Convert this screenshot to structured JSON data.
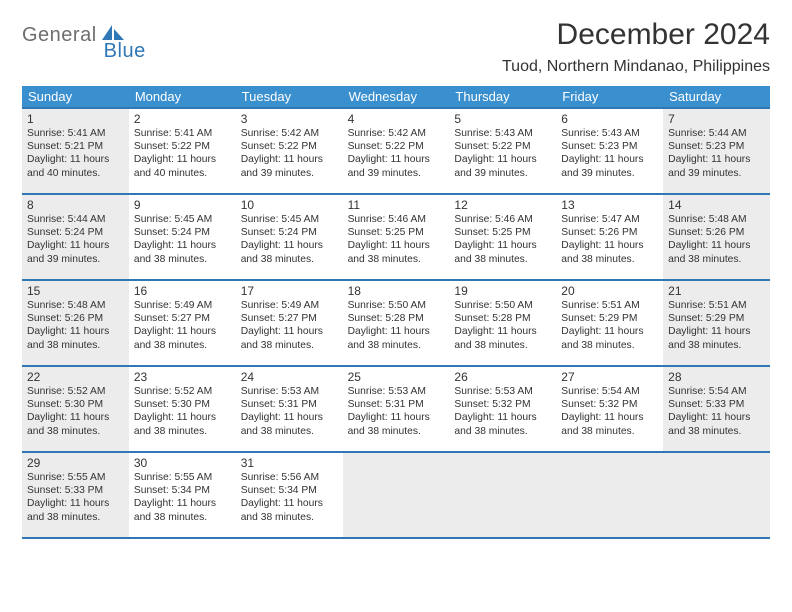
{
  "logo": {
    "part1": "General",
    "part2": "Blue"
  },
  "title": "December 2024",
  "location": "Tuod, Northern Mindanao, Philippines",
  "colors": {
    "header_bg": "#3a8fcf",
    "header_text": "#ffffff",
    "border": "#2f77b5",
    "grey_cell": "#ececec",
    "logo_grey": "#6e6e6e",
    "logo_blue": "#2f77b5"
  },
  "daynames": [
    "Sunday",
    "Monday",
    "Tuesday",
    "Wednesday",
    "Thursday",
    "Friday",
    "Saturday"
  ],
  "days": [
    {
      "n": "1",
      "grey": true,
      "sr": "5:41 AM",
      "ss": "5:21 PM",
      "dl": "11 hours and 40 minutes."
    },
    {
      "n": "2",
      "grey": false,
      "sr": "5:41 AM",
      "ss": "5:22 PM",
      "dl": "11 hours and 40 minutes."
    },
    {
      "n": "3",
      "grey": false,
      "sr": "5:42 AM",
      "ss": "5:22 PM",
      "dl": "11 hours and 39 minutes."
    },
    {
      "n": "4",
      "grey": false,
      "sr": "5:42 AM",
      "ss": "5:22 PM",
      "dl": "11 hours and 39 minutes."
    },
    {
      "n": "5",
      "grey": false,
      "sr": "5:43 AM",
      "ss": "5:22 PM",
      "dl": "11 hours and 39 minutes."
    },
    {
      "n": "6",
      "grey": false,
      "sr": "5:43 AM",
      "ss": "5:23 PM",
      "dl": "11 hours and 39 minutes."
    },
    {
      "n": "7",
      "grey": true,
      "sr": "5:44 AM",
      "ss": "5:23 PM",
      "dl": "11 hours and 39 minutes."
    },
    {
      "n": "8",
      "grey": true,
      "sr": "5:44 AM",
      "ss": "5:24 PM",
      "dl": "11 hours and 39 minutes."
    },
    {
      "n": "9",
      "grey": false,
      "sr": "5:45 AM",
      "ss": "5:24 PM",
      "dl": "11 hours and 38 minutes."
    },
    {
      "n": "10",
      "grey": false,
      "sr": "5:45 AM",
      "ss": "5:24 PM",
      "dl": "11 hours and 38 minutes."
    },
    {
      "n": "11",
      "grey": false,
      "sr": "5:46 AM",
      "ss": "5:25 PM",
      "dl": "11 hours and 38 minutes."
    },
    {
      "n": "12",
      "grey": false,
      "sr": "5:46 AM",
      "ss": "5:25 PM",
      "dl": "11 hours and 38 minutes."
    },
    {
      "n": "13",
      "grey": false,
      "sr": "5:47 AM",
      "ss": "5:26 PM",
      "dl": "11 hours and 38 minutes."
    },
    {
      "n": "14",
      "grey": true,
      "sr": "5:48 AM",
      "ss": "5:26 PM",
      "dl": "11 hours and 38 minutes."
    },
    {
      "n": "15",
      "grey": true,
      "sr": "5:48 AM",
      "ss": "5:26 PM",
      "dl": "11 hours and 38 minutes."
    },
    {
      "n": "16",
      "grey": false,
      "sr": "5:49 AM",
      "ss": "5:27 PM",
      "dl": "11 hours and 38 minutes."
    },
    {
      "n": "17",
      "grey": false,
      "sr": "5:49 AM",
      "ss": "5:27 PM",
      "dl": "11 hours and 38 minutes."
    },
    {
      "n": "18",
      "grey": false,
      "sr": "5:50 AM",
      "ss": "5:28 PM",
      "dl": "11 hours and 38 minutes."
    },
    {
      "n": "19",
      "grey": false,
      "sr": "5:50 AM",
      "ss": "5:28 PM",
      "dl": "11 hours and 38 minutes."
    },
    {
      "n": "20",
      "grey": false,
      "sr": "5:51 AM",
      "ss": "5:29 PM",
      "dl": "11 hours and 38 minutes."
    },
    {
      "n": "21",
      "grey": true,
      "sr": "5:51 AM",
      "ss": "5:29 PM",
      "dl": "11 hours and 38 minutes."
    },
    {
      "n": "22",
      "grey": true,
      "sr": "5:52 AM",
      "ss": "5:30 PM",
      "dl": "11 hours and 38 minutes."
    },
    {
      "n": "23",
      "grey": false,
      "sr": "5:52 AM",
      "ss": "5:30 PM",
      "dl": "11 hours and 38 minutes."
    },
    {
      "n": "24",
      "grey": false,
      "sr": "5:53 AM",
      "ss": "5:31 PM",
      "dl": "11 hours and 38 minutes."
    },
    {
      "n": "25",
      "grey": false,
      "sr": "5:53 AM",
      "ss": "5:31 PM",
      "dl": "11 hours and 38 minutes."
    },
    {
      "n": "26",
      "grey": false,
      "sr": "5:53 AM",
      "ss": "5:32 PM",
      "dl": "11 hours and 38 minutes."
    },
    {
      "n": "27",
      "grey": false,
      "sr": "5:54 AM",
      "ss": "5:32 PM",
      "dl": "11 hours and 38 minutes."
    },
    {
      "n": "28",
      "grey": true,
      "sr": "5:54 AM",
      "ss": "5:33 PM",
      "dl": "11 hours and 38 minutes."
    },
    {
      "n": "29",
      "grey": true,
      "sr": "5:55 AM",
      "ss": "5:33 PM",
      "dl": "11 hours and 38 minutes."
    },
    {
      "n": "30",
      "grey": false,
      "sr": "5:55 AM",
      "ss": "5:34 PM",
      "dl": "11 hours and 38 minutes."
    },
    {
      "n": "31",
      "grey": false,
      "sr": "5:56 AM",
      "ss": "5:34 PM",
      "dl": "11 hours and 38 minutes."
    }
  ],
  "trailing_empty": 4,
  "labels": {
    "sunrise": "Sunrise:",
    "sunset": "Sunset:",
    "daylight": "Daylight:"
  }
}
